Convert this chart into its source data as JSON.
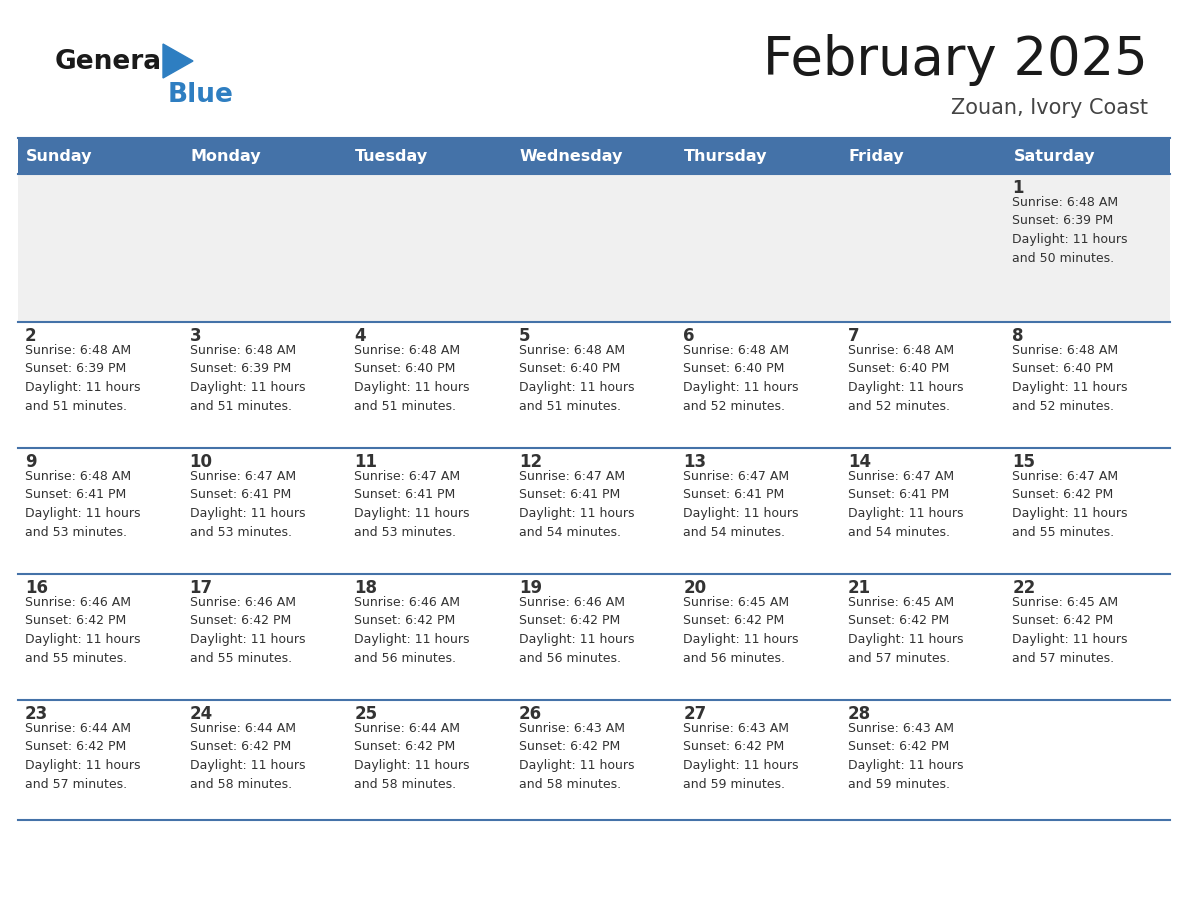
{
  "title": "February 2025",
  "subtitle": "Zouan, Ivory Coast",
  "header_bg": "#4472A8",
  "header_text_color": "#FFFFFF",
  "day_names": [
    "Sunday",
    "Monday",
    "Tuesday",
    "Wednesday",
    "Thursday",
    "Friday",
    "Saturday"
  ],
  "row_bg": "#FFFFFF",
  "first_row_bg": "#F0F0F0",
  "cell_border_color": "#4472A8",
  "day_number_color": "#333333",
  "info_text_color": "#333333",
  "title_color": "#1a1a1a",
  "subtitle_color": "#444444",
  "logo_general_color": "#1a1a1a",
  "logo_blue_color": "#2E7EC1",
  "calendar_data": [
    [
      {
        "day": null,
        "info": ""
      },
      {
        "day": null,
        "info": ""
      },
      {
        "day": null,
        "info": ""
      },
      {
        "day": null,
        "info": ""
      },
      {
        "day": null,
        "info": ""
      },
      {
        "day": null,
        "info": ""
      },
      {
        "day": 1,
        "info": "Sunrise: 6:48 AM\nSunset: 6:39 PM\nDaylight: 11 hours\nand 50 minutes."
      }
    ],
    [
      {
        "day": 2,
        "info": "Sunrise: 6:48 AM\nSunset: 6:39 PM\nDaylight: 11 hours\nand 51 minutes."
      },
      {
        "day": 3,
        "info": "Sunrise: 6:48 AM\nSunset: 6:39 PM\nDaylight: 11 hours\nand 51 minutes."
      },
      {
        "day": 4,
        "info": "Sunrise: 6:48 AM\nSunset: 6:40 PM\nDaylight: 11 hours\nand 51 minutes."
      },
      {
        "day": 5,
        "info": "Sunrise: 6:48 AM\nSunset: 6:40 PM\nDaylight: 11 hours\nand 51 minutes."
      },
      {
        "day": 6,
        "info": "Sunrise: 6:48 AM\nSunset: 6:40 PM\nDaylight: 11 hours\nand 52 minutes."
      },
      {
        "day": 7,
        "info": "Sunrise: 6:48 AM\nSunset: 6:40 PM\nDaylight: 11 hours\nand 52 minutes."
      },
      {
        "day": 8,
        "info": "Sunrise: 6:48 AM\nSunset: 6:40 PM\nDaylight: 11 hours\nand 52 minutes."
      }
    ],
    [
      {
        "day": 9,
        "info": "Sunrise: 6:48 AM\nSunset: 6:41 PM\nDaylight: 11 hours\nand 53 minutes."
      },
      {
        "day": 10,
        "info": "Sunrise: 6:47 AM\nSunset: 6:41 PM\nDaylight: 11 hours\nand 53 minutes."
      },
      {
        "day": 11,
        "info": "Sunrise: 6:47 AM\nSunset: 6:41 PM\nDaylight: 11 hours\nand 53 minutes."
      },
      {
        "day": 12,
        "info": "Sunrise: 6:47 AM\nSunset: 6:41 PM\nDaylight: 11 hours\nand 54 minutes."
      },
      {
        "day": 13,
        "info": "Sunrise: 6:47 AM\nSunset: 6:41 PM\nDaylight: 11 hours\nand 54 minutes."
      },
      {
        "day": 14,
        "info": "Sunrise: 6:47 AM\nSunset: 6:41 PM\nDaylight: 11 hours\nand 54 minutes."
      },
      {
        "day": 15,
        "info": "Sunrise: 6:47 AM\nSunset: 6:42 PM\nDaylight: 11 hours\nand 55 minutes."
      }
    ],
    [
      {
        "day": 16,
        "info": "Sunrise: 6:46 AM\nSunset: 6:42 PM\nDaylight: 11 hours\nand 55 minutes."
      },
      {
        "day": 17,
        "info": "Sunrise: 6:46 AM\nSunset: 6:42 PM\nDaylight: 11 hours\nand 55 minutes."
      },
      {
        "day": 18,
        "info": "Sunrise: 6:46 AM\nSunset: 6:42 PM\nDaylight: 11 hours\nand 56 minutes."
      },
      {
        "day": 19,
        "info": "Sunrise: 6:46 AM\nSunset: 6:42 PM\nDaylight: 11 hours\nand 56 minutes."
      },
      {
        "day": 20,
        "info": "Sunrise: 6:45 AM\nSunset: 6:42 PM\nDaylight: 11 hours\nand 56 minutes."
      },
      {
        "day": 21,
        "info": "Sunrise: 6:45 AM\nSunset: 6:42 PM\nDaylight: 11 hours\nand 57 minutes."
      },
      {
        "day": 22,
        "info": "Sunrise: 6:45 AM\nSunset: 6:42 PM\nDaylight: 11 hours\nand 57 minutes."
      }
    ],
    [
      {
        "day": 23,
        "info": "Sunrise: 6:44 AM\nSunset: 6:42 PM\nDaylight: 11 hours\nand 57 minutes."
      },
      {
        "day": 24,
        "info": "Sunrise: 6:44 AM\nSunset: 6:42 PM\nDaylight: 11 hours\nand 58 minutes."
      },
      {
        "day": 25,
        "info": "Sunrise: 6:44 AM\nSunset: 6:42 PM\nDaylight: 11 hours\nand 58 minutes."
      },
      {
        "day": 26,
        "info": "Sunrise: 6:43 AM\nSunset: 6:42 PM\nDaylight: 11 hours\nand 58 minutes."
      },
      {
        "day": 27,
        "info": "Sunrise: 6:43 AM\nSunset: 6:42 PM\nDaylight: 11 hours\nand 59 minutes."
      },
      {
        "day": 28,
        "info": "Sunrise: 6:43 AM\nSunset: 6:42 PM\nDaylight: 11 hours\nand 59 minutes."
      },
      {
        "day": null,
        "info": ""
      }
    ]
  ]
}
